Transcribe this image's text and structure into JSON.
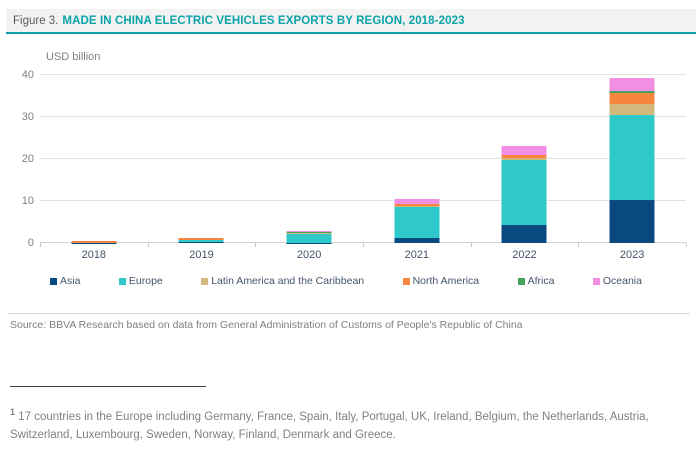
{
  "header": {
    "figure_label": "Figure 3.",
    "title": "MADE IN CHINA ELECTRIC VEHICLES EXPORTS BY REGION, 2018-2023"
  },
  "chart_data": {
    "type": "bar",
    "stacked": true,
    "title": "MADE IN CHINA ELECTRIC VEHICLES EXPORTS BY REGION, 2018-2023",
    "ylabel": "USD billion",
    "xlabel": "",
    "ylim": [
      0,
      40
    ],
    "yticks": [
      0,
      10,
      20,
      30,
      40
    ],
    "grid": "horizontal",
    "legend_position": "bottom",
    "categories": [
      "2018",
      "2019",
      "2020",
      "2021",
      "2022",
      "2023"
    ],
    "series": [
      {
        "name": "Asia",
        "color": "#084a80",
        "values": [
          0.03,
          0.15,
          0.05,
          1.2,
          4.4,
          10.3
        ]
      },
      {
        "name": "Europe",
        "color": "#2fc9cc",
        "values": [
          0.06,
          0.55,
          2.2,
          7.3,
          15.4,
          20.3
        ]
      },
      {
        "name": "Latin America and the Caribbean",
        "color": "#d2b87a",
        "values": [
          0.02,
          0.03,
          0.05,
          0.25,
          0.35,
          2.4
        ]
      },
      {
        "name": "North America",
        "color": "#f5853f",
        "values": [
          0.3,
          0.45,
          0.2,
          0.5,
          0.7,
          2.7
        ]
      },
      {
        "name": "Africa",
        "color": "#44a25e",
        "values": [
          0.01,
          0.02,
          0.02,
          0.05,
          0.1,
          0.6
        ]
      },
      {
        "name": "Oceania",
        "color": "#f18fe4",
        "values": [
          0.03,
          0.05,
          0.35,
          1.1,
          2.2,
          2.9
        ]
      }
    ]
  },
  "source": {
    "text": "Source: BBVA Research based on data from General Administration of Customs of People's Republic of China"
  },
  "footnote": {
    "marker": "1",
    "text": "17 countries in the Europe including Germany, France, Spain, Italy, Portugal, UK, Ireland, Belgium, the Netherlands, Austria, Switzerland, Luxembourg, Sweden, Norway, Finland, Denmark and Greece."
  }
}
